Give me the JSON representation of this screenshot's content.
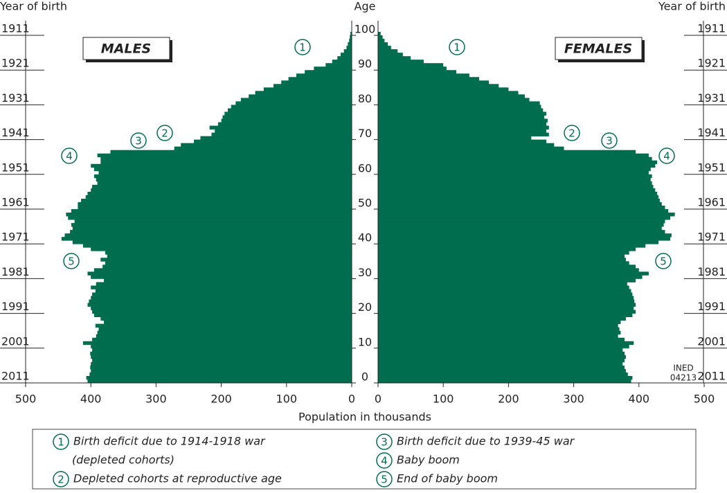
{
  "chart_data": {
    "type": "pyramid",
    "y_label": "Age",
    "y2_label": "Year of birth",
    "x_label": "Population in thousands",
    "xlim": [
      0,
      500
    ],
    "xticks": [
      0,
      100,
      200,
      300,
      400,
      500
    ],
    "ylim": [
      0,
      101
    ],
    "yticks": [
      0,
      10,
      20,
      30,
      40,
      50,
      60,
      70,
      80,
      90,
      100
    ],
    "y2ticks": [
      {
        "value": 0,
        "label": "2011"
      },
      {
        "value": 10,
        "label": "2001"
      },
      {
        "value": 20,
        "label": "1991"
      },
      {
        "value": 30,
        "label": "1981"
      },
      {
        "value": 40,
        "label": "1971"
      },
      {
        "value": 50,
        "label": "1961"
      },
      {
        "value": 60,
        "label": "1951"
      },
      {
        "value": 70,
        "label": "1941"
      },
      {
        "value": 80,
        "label": "1931"
      },
      {
        "value": 90,
        "label": "1921"
      },
      {
        "value": 100,
        "label": "1911"
      }
    ],
    "series": [
      {
        "name": "MALES",
        "color": "#006e4e",
        "values": [
          405,
          407,
          402,
          400,
          401,
          400,
          398,
          400,
          401,
          398,
          400,
          412,
          398,
          392,
          390,
          388,
          393,
          380,
          385,
          395,
          398,
          400,
          405,
          403,
          400,
          398,
          393,
          400,
          392,
          380,
          400,
          405,
          395,
          382,
          378,
          385,
          375,
          378,
          400,
          412,
          428,
          445,
          440,
          432,
          428,
          430,
          425,
          435,
          438,
          430,
          420,
          420,
          415,
          408,
          405,
          400,
          398,
          390,
          392,
          395,
          388,
          395,
          400,
          385,
          385,
          390,
          370,
          272,
          262,
          242,
          232,
          215,
          210,
          218,
          205,
          200,
          198,
          195,
          190,
          185,
          178,
          170,
          158,
          148,
          135,
          120,
          108,
          97,
          85,
          72,
          58,
          40,
          30,
          22,
          17,
          12,
          8,
          6,
          4,
          3,
          2
        ]
      },
      {
        "name": "FEMALES",
        "color": "#006e4e",
        "values": [
          388,
          390,
          383,
          380,
          378,
          375,
          378,
          380,
          378,
          375,
          385,
          392,
          378,
          368,
          372,
          370,
          368,
          372,
          380,
          390,
          395,
          392,
          395,
          393,
          392,
          390,
          388,
          385,
          382,
          395,
          405,
          415,
          400,
          395,
          385,
          380,
          378,
          385,
          395,
          410,
          430,
          448,
          450,
          440,
          435,
          438,
          440,
          448,
          455,
          445,
          440,
          435,
          432,
          430,
          428,
          425,
          422,
          420,
          418,
          420,
          415,
          418,
          425,
          428,
          420,
          415,
          395,
          285,
          270,
          258,
          235,
          262,
          258,
          262,
          258,
          260,
          255,
          258,
          253,
          250,
          248,
          232,
          225,
          215,
          200,
          185,
          170,
          155,
          140,
          120,
          105,
          100,
          70,
          50,
          38,
          30,
          20,
          15,
          10,
          7,
          4
        ]
      }
    ],
    "annotation": [
      "INED",
      "04213"
    ],
    "notes": [
      {
        "label": "1",
        "lines": [
          "Birth deficit due to 1914-1918 war",
          "(depleted cohorts)"
        ]
      },
      {
        "label": "2",
        "lines": [
          "Depleted cohorts at reproductive age"
        ]
      },
      {
        "label": "3",
        "lines": [
          "Birth deficit due to 1939-45 war"
        ]
      },
      {
        "label": "4",
        "lines": [
          "Baby boom"
        ]
      },
      {
        "label": "5",
        "lines": [
          "End of baby boom"
        ]
      }
    ]
  }
}
